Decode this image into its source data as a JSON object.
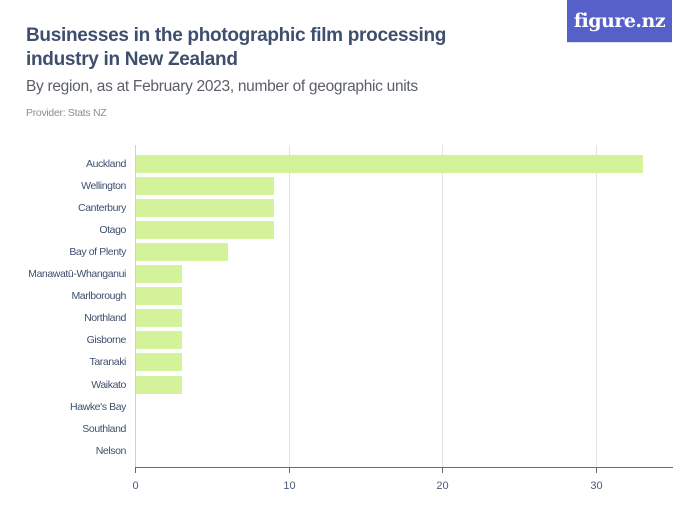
{
  "header": {
    "title": "Businesses in the photographic film processing industry in New Zealand",
    "subtitle": "By region, as at February 2023, number of geographic units",
    "provider": "Provider: Stats NZ"
  },
  "logo": {
    "text": "figure.nz",
    "background": "#5561c8"
  },
  "colors": {
    "bar": "#d4f29a",
    "title": "#3e4f6e",
    "axis": "#6b6b6b",
    "grid": "#e3e3e3"
  },
  "chart_data": {
    "type": "bar",
    "orientation": "horizontal",
    "title": "Businesses in the photographic film processing industry in New Zealand",
    "subtitle": "By region, as at February 2023, number of geographic units",
    "xlabel": "",
    "ylabel": "",
    "categories": [
      "Auckland",
      "Wellington",
      "Canterbury",
      "Otago",
      "Bay of Plenty",
      "Manawatū-Whanganui",
      "Marlborough",
      "Northland",
      "Gisborne",
      "Taranaki",
      "Waikato",
      "Hawke's Bay",
      "Southland",
      "Nelson"
    ],
    "values": [
      33,
      9,
      9,
      9,
      6,
      3,
      3,
      3,
      3,
      3,
      3,
      0,
      0,
      0
    ],
    "xlim": [
      0,
      35
    ],
    "xticks": [
      "0",
      "10",
      "20",
      "30"
    ],
    "grid": true,
    "legend": null
  }
}
